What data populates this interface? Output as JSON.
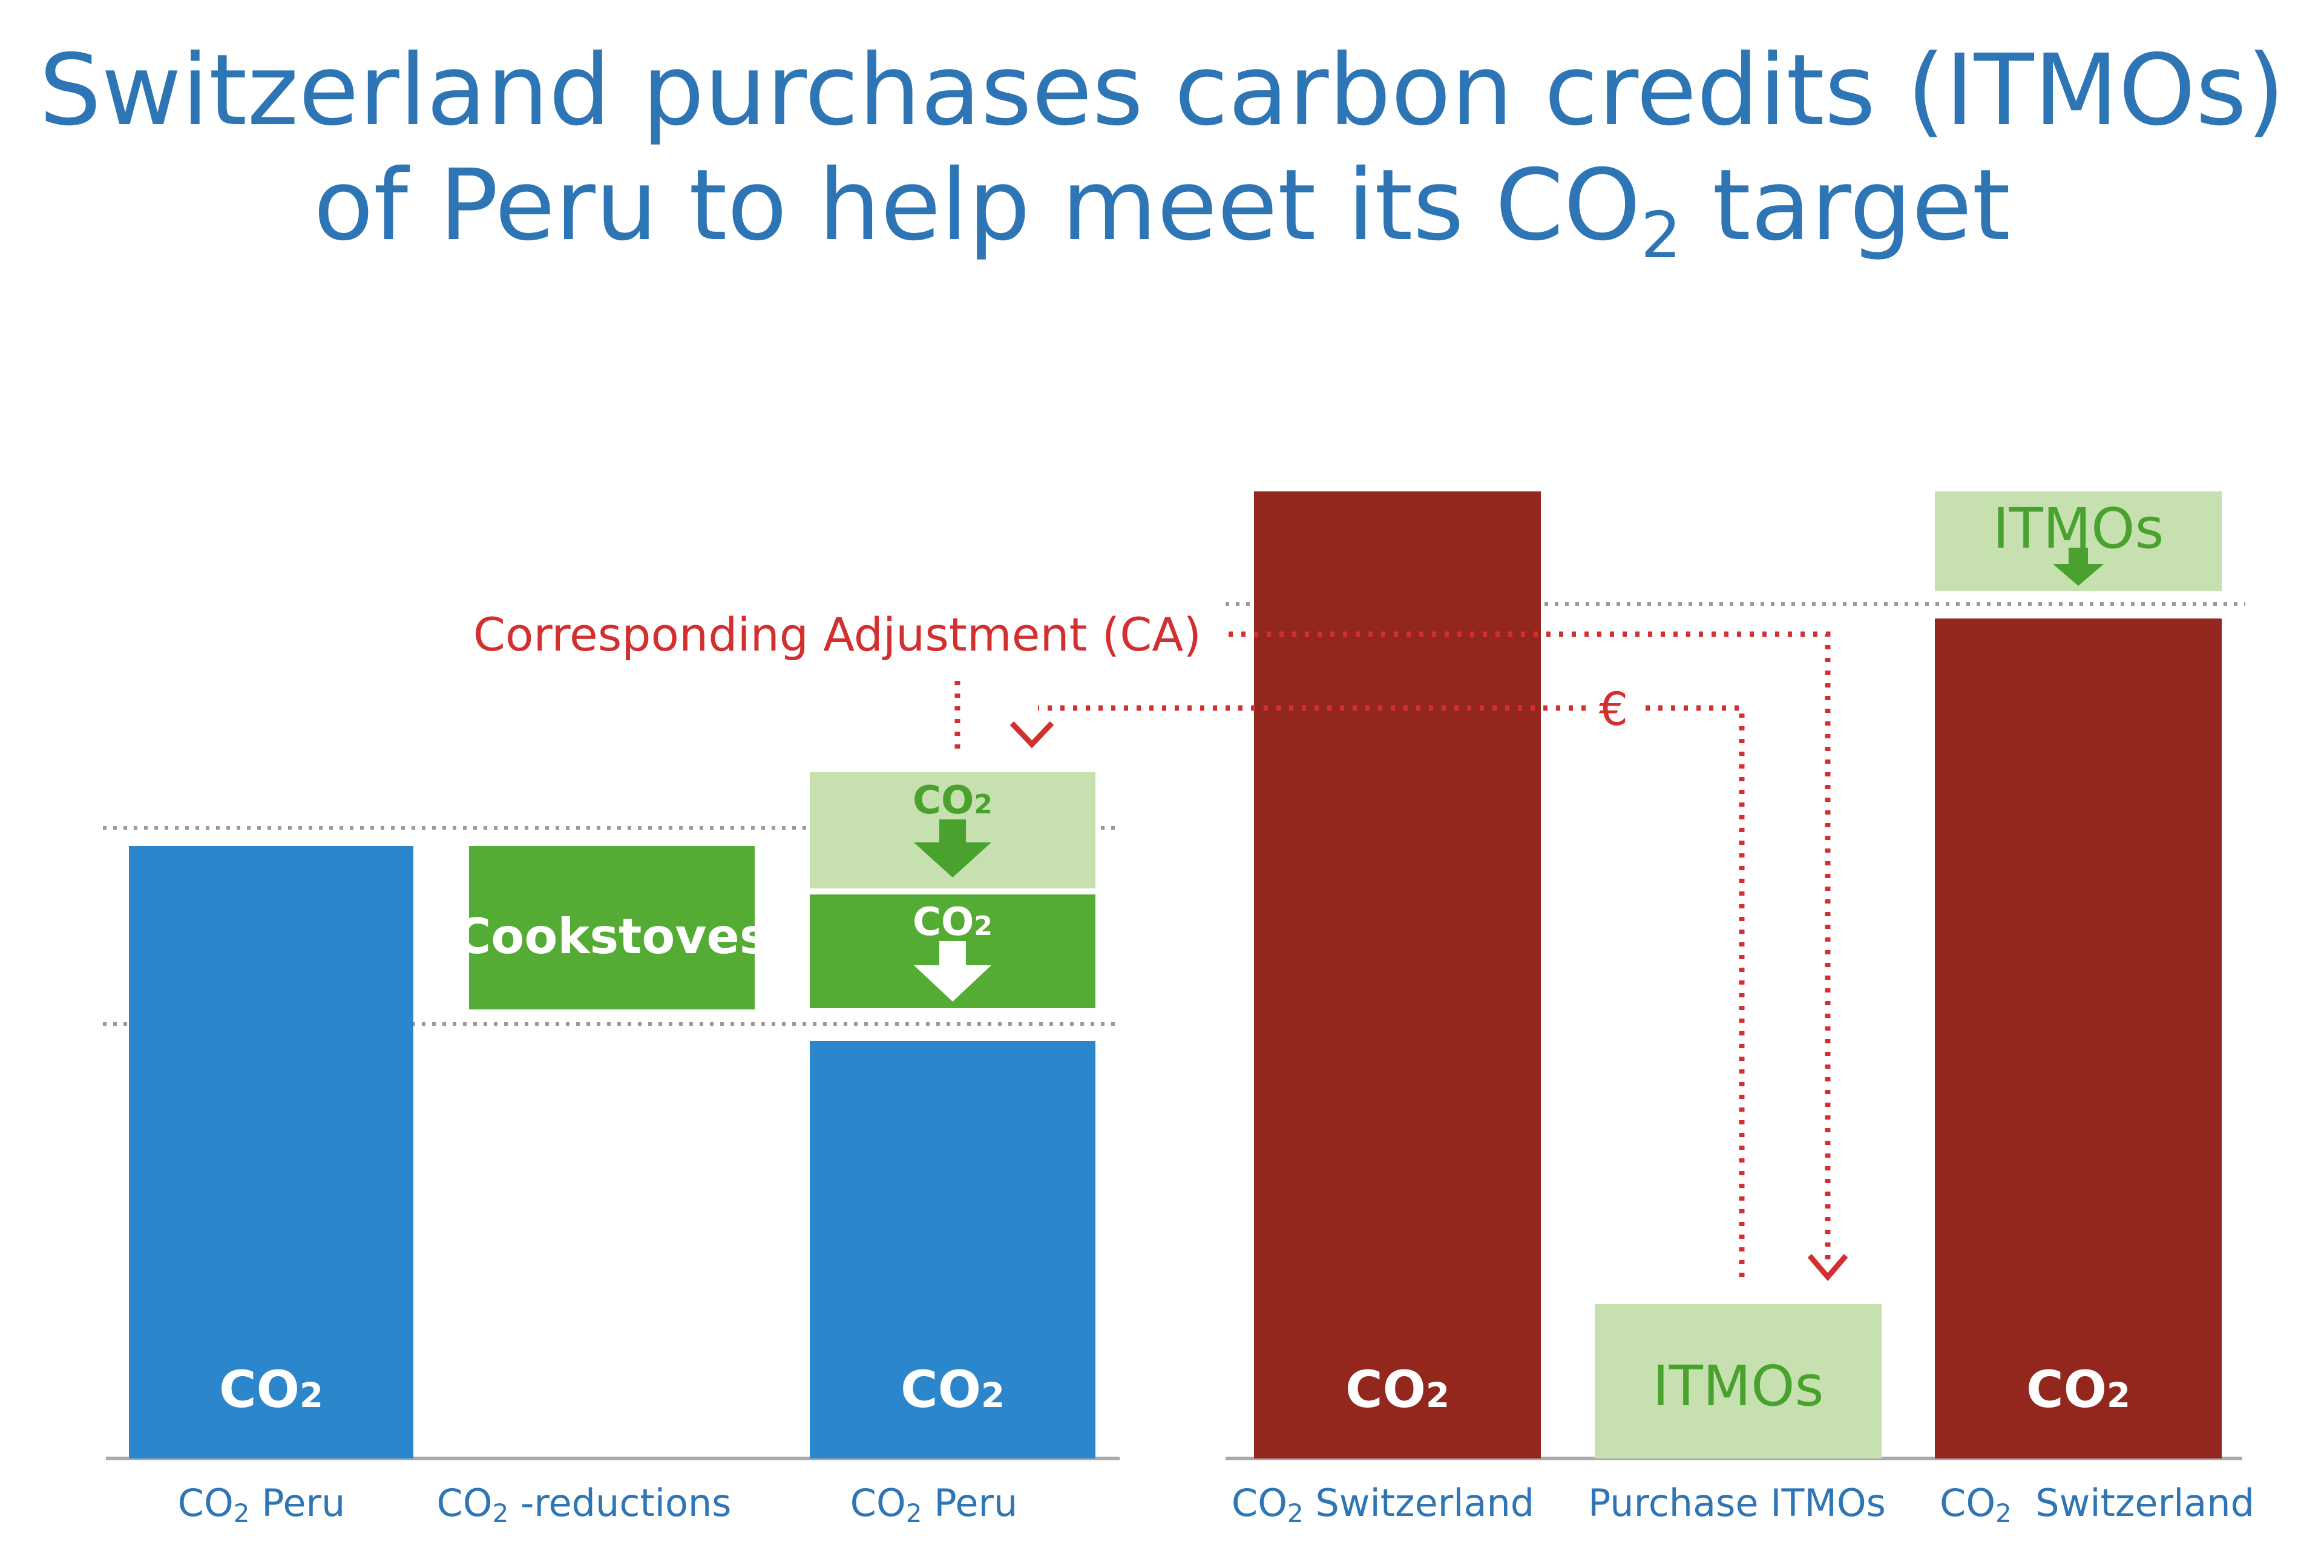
{
  "title": {
    "line1": "Switzerland purchases carbon credits (ITMOs)",
    "line2_pre": "of Peru to help meet its CO",
    "line2_sub": "2",
    "line2_post": " target"
  },
  "colors": {
    "title": "#2e75b6",
    "peru_blue": "#2b86cc",
    "switzerland_red": "#93271e",
    "green_dark": "#55ac34",
    "green_light": "#c6e0b0",
    "green_text": "#4aa22e",
    "annotation_red": "#d32f2f"
  },
  "bar_text": {
    "co2_pre": "CO",
    "co2_sub": "2"
  },
  "boxes": {
    "cookstoves": "Cookstoves",
    "itmos": "ITMOs"
  },
  "annotations": {
    "corresponding_adjustment": "Corresponding Adjustment (CA)",
    "euro": "€"
  },
  "x_labels": [
    {
      "pre": "CO",
      "sub": "2",
      "post": " Peru"
    },
    {
      "pre": "CO",
      "sub": "2",
      "post": " -reductions"
    },
    {
      "pre": "CO",
      "sub": "2",
      "post": " Peru"
    },
    {
      "pre": "CO",
      "sub": "2",
      "post": " Switzerland"
    },
    {
      "pre": "",
      "sub": "",
      "post": "Purchase ITMOs"
    },
    {
      "pre": "CO",
      "sub": "2",
      "post": "  Switzerland"
    }
  ],
  "icons": [
    "down-arrow-icon"
  ]
}
